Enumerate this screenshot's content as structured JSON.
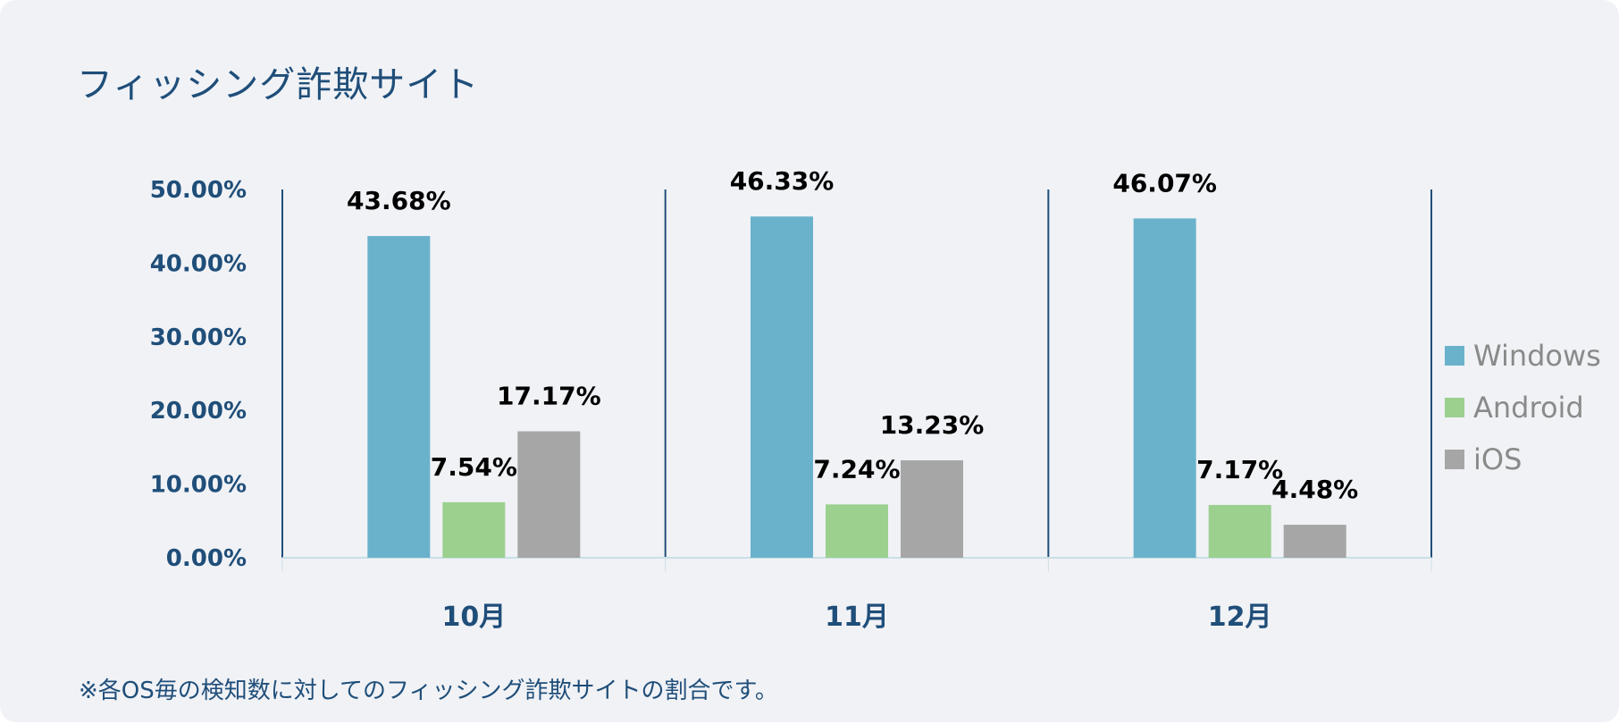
{
  "title": "フィッシング詐欺サイト",
  "note": "※各OS毎の検知数に対してのフィッシング詐欺サイトの割合です。",
  "chart_data": {
    "type": "bar",
    "title": "フィッシング詐欺サイト",
    "categories": [
      "10月",
      "11月",
      "12月"
    ],
    "series": [
      {
        "name": "Windows",
        "values": [
          43.68,
          46.33,
          46.07
        ],
        "labels": [
          "43.68%",
          "46.33%",
          "46.07%"
        ],
        "color": "#6ab2cc"
      },
      {
        "name": "Android",
        "values": [
          7.54,
          7.24,
          7.17
        ],
        "labels": [
          "7.54%",
          "7.24%",
          "7.17%"
        ],
        "color": "#9bd08f"
      },
      {
        "name": "iOS",
        "values": [
          17.17,
          13.23,
          4.48
        ],
        "labels": [
          "17.17%",
          "13.23%",
          "4.48%"
        ],
        "color": "#a6a6a6"
      }
    ],
    "yticks": [
      "0.00%",
      "10.00%",
      "20.00%",
      "30.00%",
      "40.00%",
      "50.00%"
    ],
    "ylim": [
      0,
      50
    ],
    "legend": "right",
    "grid": false
  }
}
